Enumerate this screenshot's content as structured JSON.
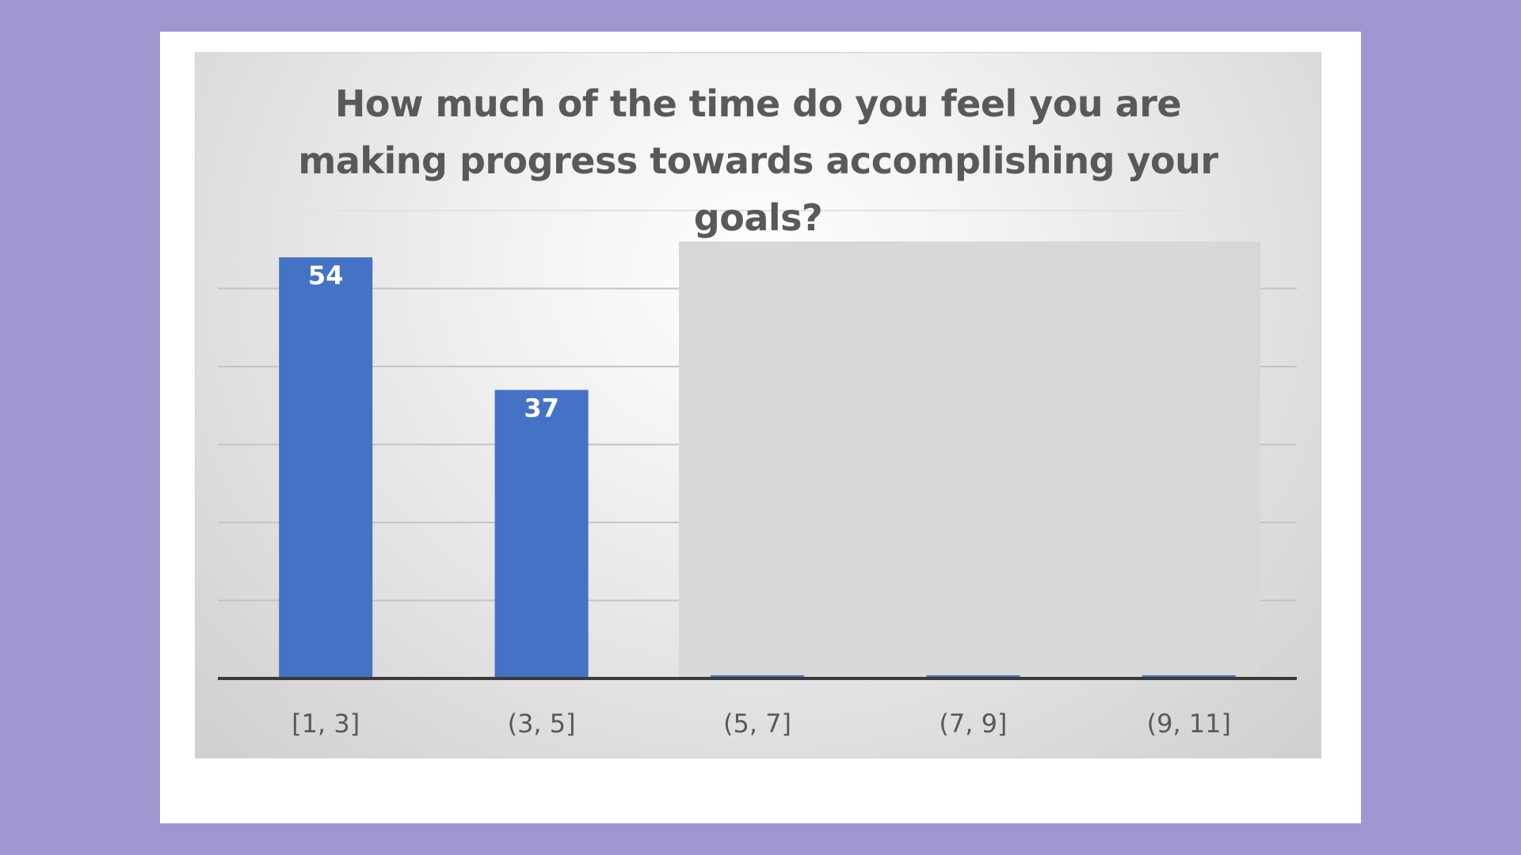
{
  "colors": {
    "background": "#a195d1",
    "card": "#ffffff",
    "bar": "#4472c4",
    "title": "#595959",
    "occluder": "#d8d8d8"
  },
  "chart_data": {
    "type": "bar",
    "title": "How much of the time do you feel you are making progress towards accomplishing your goals?",
    "categories": [
      "[1, 3]",
      "(3, 5]",
      "(5, 7]",
      "(7, 9]",
      "(9, 11]"
    ],
    "values": [
      54,
      37,
      null,
      null,
      null
    ],
    "data_labels": [
      "54",
      "37",
      "",
      "",
      ""
    ],
    "ylim": [
      0,
      60
    ],
    "grid": true,
    "legend": "none",
    "notes_visible": "bars for (5, 7], (7, 9] and (9, 11] are covered by a gray box"
  }
}
